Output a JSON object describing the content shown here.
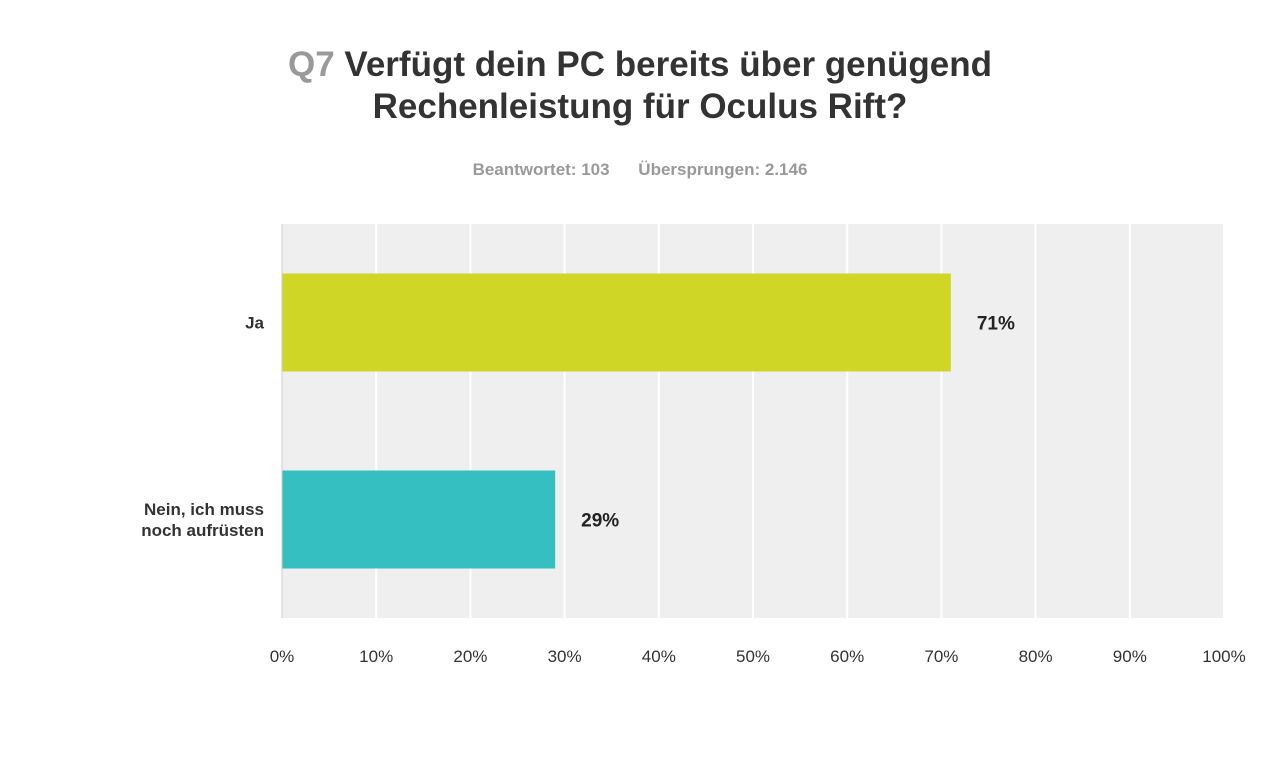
{
  "header": {
    "question_number": "Q7",
    "title_line1": "Verfügt dein PC bereits über genügend",
    "title_line2": "Rechenleistung für Oculus Rift?",
    "answered": "Beantwortet: 103",
    "skipped": "Übersprungen: 2.146"
  },
  "colors": {
    "plot_background": "#efefef",
    "gridline": "#ffffff",
    "axis": "#cccccc"
  },
  "chart_data": {
    "type": "bar",
    "orientation": "horizontal",
    "categories": [
      [
        "Ja"
      ],
      [
        "Nein, ich muss",
        "noch aufrüsten"
      ]
    ],
    "values": [
      71,
      29
    ],
    "value_labels": [
      "71%",
      "29%"
    ],
    "bar_colors": [
      "#cfd626",
      "#35bfc1"
    ],
    "xlim": [
      0,
      100
    ],
    "x_ticks": [
      0,
      10,
      20,
      30,
      40,
      50,
      60,
      70,
      80,
      90,
      100
    ],
    "x_tick_labels": [
      "0%",
      "10%",
      "20%",
      "30%",
      "40%",
      "50%",
      "60%",
      "70%",
      "80%",
      "90%",
      "100%"
    ],
    "grid": true
  }
}
